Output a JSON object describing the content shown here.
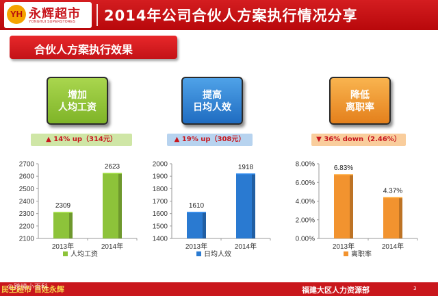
{
  "header": {
    "logo_badge": "YH",
    "logo_name": "永辉超市",
    "logo_sub": "YONGHUI SUPERSTORES",
    "title": "2014年公司合伙人方案执行情况分享"
  },
  "section": {
    "label": "合伙人方案执行效果"
  },
  "metrics": [
    {
      "line1": "增加",
      "line2": "人均工资",
      "change": "▲ 14% up（314元）"
    },
    {
      "line1": "提高",
      "line2": "日均人效",
      "change": "▲ 19% up（308元）"
    },
    {
      "line1": "降低",
      "line2": "离职率",
      "change": "▼ 36% down（2.46%）"
    }
  ],
  "colors": {
    "green": "#8dc33a",
    "blue": "#2a7ad1",
    "orange": "#f2932f",
    "brand_red": "#c9171c"
  },
  "chart_data": [
    {
      "type": "bar",
      "categories": [
        "2013年",
        "2014年"
      ],
      "series": [
        {
          "name": "人均工资",
          "values": [
            2309,
            2623
          ]
        }
      ],
      "data_labels": [
        "2309",
        "2623"
      ],
      "ylim": [
        2100,
        2700
      ],
      "yticks": [
        2100,
        2200,
        2300,
        2400,
        2500,
        2600,
        2700
      ],
      "ytick_labels": [
        "2100",
        "2200",
        "2300",
        "2400",
        "2500",
        "2600",
        "2700"
      ],
      "legend": "bottom",
      "color": "#8dc33a",
      "grid": false
    },
    {
      "type": "bar",
      "categories": [
        "2013年",
        "2014年"
      ],
      "series": [
        {
          "name": "日均人效",
          "values": [
            1610,
            1918
          ]
        }
      ],
      "data_labels": [
        "1610",
        "1918"
      ],
      "ylim": [
        1400,
        2000
      ],
      "yticks": [
        1400,
        1500,
        1600,
        1700,
        1800,
        1900,
        2000
      ],
      "ytick_labels": [
        "1400",
        "1500",
        "1600",
        "1700",
        "1800",
        "1900",
        "2000"
      ],
      "legend": "bottom",
      "color": "#2a7ad1",
      "grid": false
    },
    {
      "type": "bar",
      "categories": [
        "2013年",
        "2014年"
      ],
      "series": [
        {
          "name": "离职率",
          "values": [
            6.83,
            4.37
          ]
        }
      ],
      "data_labels": [
        "6.83%",
        "4.37%"
      ],
      "ylim": [
        0,
        8
      ],
      "yticks": [
        0,
        2,
        4,
        6,
        8
      ],
      "ytick_labels": [
        "0.00%",
        "2.00%",
        "4.00%",
        "6.00%",
        "8.00%"
      ],
      "legend": "bottom",
      "color": "#f2932f",
      "grid": false
    }
  ],
  "footer": {
    "slogan": "民生超市 百姓永辉",
    "dept": "福建大区人力资源部",
    "page": "3",
    "watermark": "©跨境小百科"
  }
}
